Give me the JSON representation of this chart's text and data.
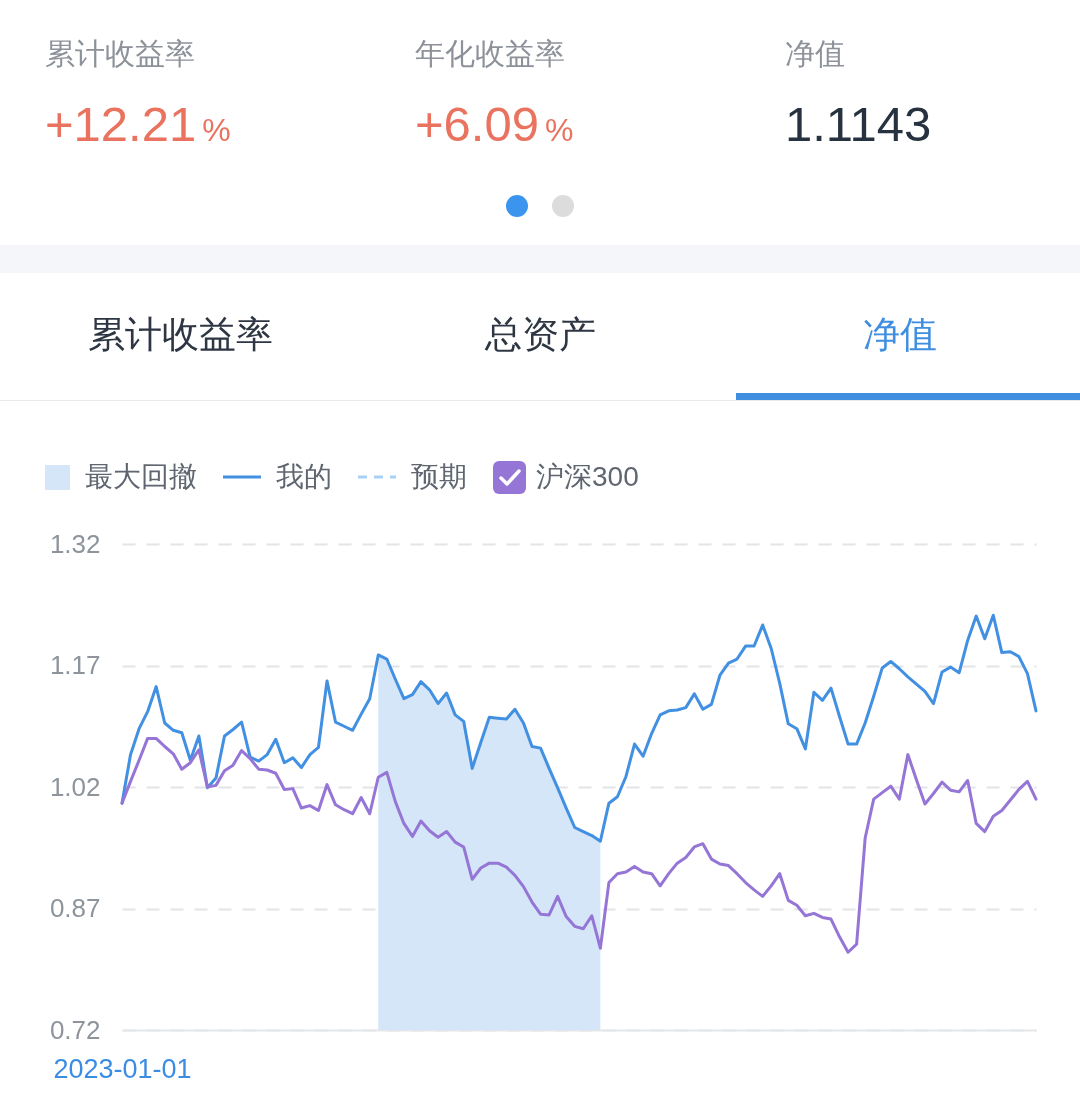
{
  "chart_data": [
    {
      "type": "other",
      "categories": [
        "累计收益率",
        "年化收益率",
        "净值"
      ],
      "value_labels": [
        "+12.21%",
        "+6.09%",
        "1.1143"
      ]
    },
    {
      "type": "other",
      "annotations": [
        "累计收益率",
        "总资产",
        "净值"
      ]
    },
    {
      "type": "line",
      "legend": "top",
      "grid": "y",
      "ylim": [
        0.72,
        1.32
      ],
      "yticks": [
        0.72,
        0.87,
        1.02,
        1.17,
        1.32
      ],
      "categories": [
        "2023-01-01",
        null,
        null,
        null,
        null,
        null,
        null,
        null,
        null,
        null,
        null,
        null,
        null,
        null,
        null,
        null,
        null,
        null,
        null,
        null,
        null,
        null,
        null,
        null,
        null,
        null,
        null,
        null,
        null,
        null,
        null,
        null,
        null,
        null,
        null,
        null,
        null,
        null,
        null,
        null,
        null,
        null,
        null,
        null,
        null,
        null,
        null,
        null,
        null,
        null,
        null,
        null,
        null,
        null,
        null,
        null,
        null,
        null,
        null,
        null,
        null,
        null,
        null,
        null,
        null,
        null,
        null,
        null,
        null,
        null,
        null,
        null,
        null,
        null,
        null,
        null,
        null,
        null,
        null,
        null,
        null,
        null,
        null,
        null,
        null,
        null,
        null,
        null,
        null,
        null,
        null,
        null,
        null,
        null,
        null,
        null,
        null,
        null,
        null,
        null,
        null,
        null,
        null,
        null,
        null,
        null,
        null,
        null
      ],
      "series": [
        {
          "name": "最大回撤",
          "type": "area",
          "color": "#d5e6f8",
          "values": [
            null,
            null,
            null,
            null,
            null,
            null,
            null,
            null,
            null,
            null,
            null,
            null,
            null,
            null,
            null,
            null,
            null,
            null,
            null,
            null,
            null,
            null,
            null,
            null,
            null,
            null,
            null,
            null,
            null,
            null,
            1.183,
            1.178,
            1.153,
            1.129,
            1.134,
            1.15,
            1.14,
            1.123,
            1.136,
            1.109,
            1.101,
            1.043,
            1.075,
            1.106,
            1.105,
            1.104,
            1.116,
            1.099,
            1.07,
            1.068,
            1.043,
            1.019,
            0.994,
            0.97,
            0.965,
            0.96,
            0.953,
            null,
            null,
            null,
            null,
            null,
            null,
            null,
            null,
            null,
            null,
            null,
            null,
            null,
            null,
            null,
            null,
            null,
            null,
            null,
            null,
            null,
            null,
            null,
            null,
            null,
            null,
            null,
            null,
            null,
            null,
            null,
            null,
            null,
            null,
            null,
            null,
            null,
            null,
            null,
            null,
            null,
            null,
            null,
            null,
            null,
            null,
            null,
            null,
            null,
            null,
            null
          ]
        },
        {
          "name": "我的",
          "color": "#4290e2",
          "values": [
            1.0,
            1.06,
            1.092,
            1.113,
            1.144,
            1.099,
            1.09,
            1.087,
            1.053,
            1.083,
            1.019,
            1.031,
            1.083,
            1.091,
            1.1,
            1.057,
            1.052,
            1.06,
            1.079,
            1.05,
            1.056,
            1.044,
            1.06,
            1.069,
            1.151,
            1.1,
            1.095,
            1.09,
            1.11,
            1.129,
            1.183,
            1.178,
            1.153,
            1.129,
            1.134,
            1.15,
            1.14,
            1.123,
            1.136,
            1.109,
            1.101,
            1.043,
            1.075,
            1.106,
            1.105,
            1.104,
            1.116,
            1.099,
            1.07,
            1.068,
            1.043,
            1.019,
            0.994,
            0.97,
            0.965,
            0.96,
            0.953,
            1.0,
            1.008,
            1.033,
            1.073,
            1.058,
            1.086,
            1.109,
            1.114,
            1.115,
            1.118,
            1.135,
            1.116,
            1.122,
            1.158,
            1.173,
            1.178,
            1.194,
            1.194,
            1.22,
            1.191,
            1.148,
            1.098,
            1.092,
            1.067,
            1.137,
            1.127,
            1.142,
            1.107,
            1.073,
            1.073,
            1.099,
            1.132,
            1.167,
            1.175,
            1.166,
            1.156,
            1.147,
            1.138,
            1.123,
            1.162,
            1.168,
            1.161,
            1.201,
            1.231,
            1.203,
            1.232,
            1.186,
            1.187,
            1.181,
            1.16,
            1.114
          ]
        },
        {
          "name": "预期",
          "color": "#a9d1f5",
          "line_style": "dashed",
          "values": [
            null,
            null,
            null,
            null,
            null,
            null,
            null,
            null,
            null,
            null,
            null,
            null,
            null,
            null,
            null,
            null,
            null,
            null,
            null,
            null,
            null,
            null,
            null,
            null,
            null,
            null,
            null,
            null,
            null,
            null,
            null,
            null,
            null,
            null,
            null,
            null,
            null,
            null,
            null,
            null,
            null,
            null,
            null,
            null,
            null,
            null,
            null,
            null,
            null,
            null,
            null,
            null,
            null,
            null,
            null,
            null,
            null,
            null,
            null,
            null,
            null,
            null,
            null,
            null,
            null,
            null,
            null,
            null,
            null,
            null,
            null,
            null,
            null,
            null,
            null,
            null,
            null,
            null,
            null,
            null,
            null,
            null,
            null,
            null,
            null,
            null,
            null,
            null,
            null,
            null,
            null,
            null,
            null,
            null,
            null,
            null,
            null,
            null,
            null,
            null,
            null,
            null,
            null,
            null,
            null,
            null,
            null,
            null
          ]
        },
        {
          "name": "沪深300",
          "color": "#9575d6",
          "values": [
            1.0,
            1.027,
            1.053,
            1.08,
            1.08,
            1.07,
            1.061,
            1.042,
            1.05,
            1.066,
            1.02,
            1.022,
            1.04,
            1.047,
            1.065,
            1.055,
            1.042,
            1.041,
            1.037,
            1.017,
            1.018,
            0.994,
            0.997,
            0.991,
            1.023,
            0.998,
            0.992,
            0.987,
            1.007,
            0.987,
            1.032,
            1.038,
            1.002,
            0.975,
            0.959,
            0.978,
            0.966,
            0.958,
            0.965,
            0.952,
            0.946,
            0.906,
            0.92,
            0.926,
            0.926,
            0.921,
            0.911,
            0.897,
            0.878,
            0.863,
            0.862,
            0.885,
            0.86,
            0.848,
            0.845,
            0.861,
            0.821,
            0.902,
            0.913,
            0.915,
            0.922,
            0.915,
            0.913,
            0.898,
            0.913,
            0.926,
            0.933,
            0.946,
            0.95,
            0.931,
            0.925,
            0.923,
            0.913,
            0.902,
            0.893,
            0.885,
            0.898,
            0.913,
            0.88,
            0.874,
            0.861,
            0.864,
            0.859,
            0.857,
            0.835,
            0.816,
            0.826,
            0.957,
            1.005,
            1.013,
            1.021,
            1.005,
            1.06,
            1.029,
            0.999,
            1.012,
            1.026,
            1.016,
            1.014,
            1.028,
            0.975,
            0.965,
            0.984,
            0.991,
            1.004,
            1.017,
            1.027,
            1.005
          ]
        }
      ]
    }
  ]
}
